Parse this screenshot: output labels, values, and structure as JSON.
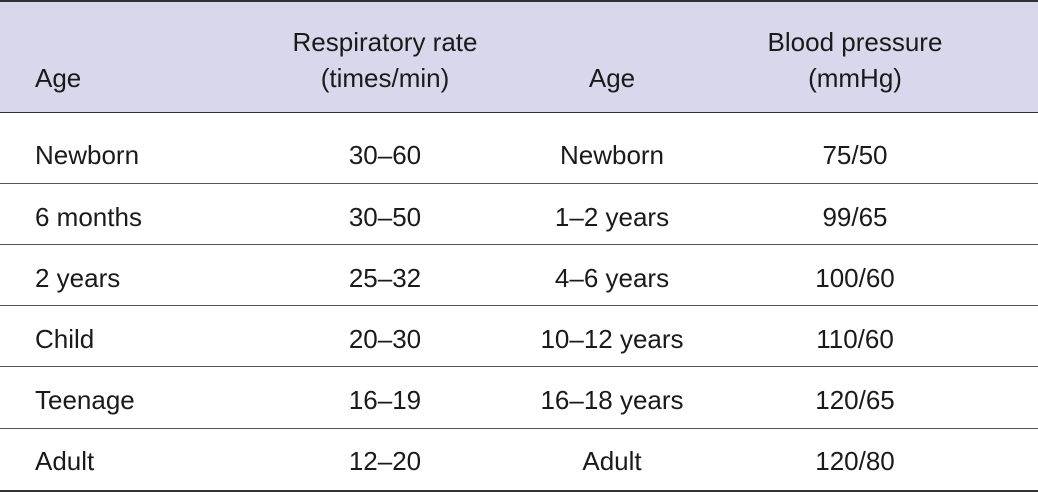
{
  "table": {
    "header": [
      [
        "Age"
      ],
      [
        "Respiratory rate",
        "(times/min)"
      ],
      [
        "Age"
      ],
      [
        "Blood pressure",
        "(mmHg)"
      ]
    ],
    "rows": [
      [
        "Newborn",
        "30–60",
        "Newborn",
        "75/50"
      ],
      [
        "6 months",
        "30–50",
        "1–2 years",
        "99/65"
      ],
      [
        "2 years",
        "25–32",
        "4–6 years",
        "100/60"
      ],
      [
        "Child",
        "20–30",
        "10–12 years",
        "110/60"
      ],
      [
        "Teenage",
        "16–19",
        "16–18 years",
        "120/65"
      ],
      [
        "Adult",
        "12–20",
        "Adult",
        "120/80"
      ]
    ]
  }
}
